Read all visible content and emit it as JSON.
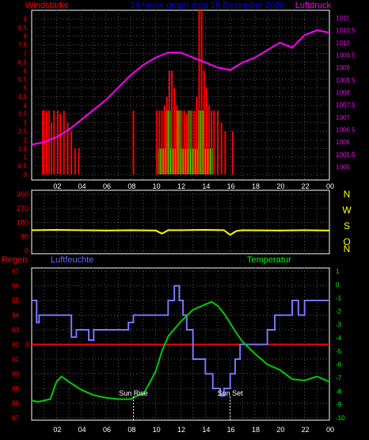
{
  "header": {
    "left_title": "Windstärke",
    "center_title": "24 hours graph data 15 Dezember 2020",
    "right_title": "Luftdruck"
  },
  "compass": [
    "N",
    "W",
    "S",
    "O",
    "N"
  ],
  "lower_header": {
    "left": "Regen",
    "mid": "Luftfeuchte",
    "right": "Temperatur"
  },
  "annotations": {
    "sunrise": "Sun Rise",
    "sunset": "Sun Set"
  },
  "colors": {
    "wind": "#ff0000",
    "gust": "#00ff00",
    "pressure": "#ff00ff",
    "direction": "#ffff00",
    "humidity": "#7777ff",
    "temperature": "#00cc00",
    "rain": "#ff0000",
    "axis_text": "#ff0000"
  },
  "chart_data": [
    {
      "type": "bar",
      "name_printed": "Windstärke / Luftdruck",
      "x_ticks": [
        "02",
        "04",
        "06",
        "08",
        "10",
        "12",
        "14",
        "16",
        "18",
        "20",
        "22",
        "00"
      ],
      "y_left_ticks": [
        "0",
        "0.5",
        "1",
        "1.5",
        "2",
        "2.5",
        "3",
        "3.5",
        "4",
        "4.5",
        "5",
        "5.5",
        "6",
        "6.5",
        "7",
        "7.5",
        "8",
        "8.5",
        "9"
      ],
      "y_right_ticks": [
        "1005",
        "1005.5",
        "1006",
        "1006.5",
        "1007",
        "1007.5",
        "1008",
        "1008.5",
        "1009",
        "1009.5",
        "1010",
        "1010.5",
        "1011"
      ],
      "y_left_range": [
        0,
        9.5
      ],
      "y_right_range": [
        1004.7,
        1011.3
      ],
      "grid": true,
      "wind_bars": [
        {
          "x": 0.9,
          "v": 3.7
        },
        {
          "x": 1.0,
          "v": 3.7
        },
        {
          "x": 1.2,
          "v": 3.7
        },
        {
          "x": 1.4,
          "v": 3.7
        },
        {
          "x": 1.6,
          "v": 3.0
        },
        {
          "x": 1.8,
          "v": 3.7
        },
        {
          "x": 2.1,
          "v": 3.7
        },
        {
          "x": 2.3,
          "v": 3.5
        },
        {
          "x": 2.6,
          "v": 3.7
        },
        {
          "x": 2.9,
          "v": 3.0
        },
        {
          "x": 3.2,
          "v": 2.5
        },
        {
          "x": 3.5,
          "v": 1.5
        },
        {
          "x": 3.8,
          "v": 1.5
        },
        {
          "x": 8.2,
          "v": 3.7
        },
        {
          "x": 10.1,
          "v": 3.7
        },
        {
          "x": 10.3,
          "v": 3.7
        },
        {
          "x": 10.5,
          "v": 3.7
        },
        {
          "x": 10.7,
          "v": 4.0
        },
        {
          "x": 10.9,
          "v": 4.5
        },
        {
          "x": 11.1,
          "v": 6.0
        },
        {
          "x": 11.3,
          "v": 6.0
        },
        {
          "x": 11.5,
          "v": 5.0
        },
        {
          "x": 11.7,
          "v": 4.0
        },
        {
          "x": 11.9,
          "v": 3.7
        },
        {
          "x": 12.1,
          "v": 3.7
        },
        {
          "x": 12.3,
          "v": 3.7
        },
        {
          "x": 12.5,
          "v": 3.5
        },
        {
          "x": 12.7,
          "v": 3.7
        },
        {
          "x": 12.9,
          "v": 3.7
        },
        {
          "x": 13.1,
          "v": 3.7
        },
        {
          "x": 13.3,
          "v": 4.5
        },
        {
          "x": 13.5,
          "v": 9.5
        },
        {
          "x": 13.7,
          "v": 9.5
        },
        {
          "x": 13.9,
          "v": 6.0
        },
        {
          "x": 14.1,
          "v": 5.0
        },
        {
          "x": 14.3,
          "v": 4.0
        },
        {
          "x": 14.5,
          "v": 3.7
        },
        {
          "x": 14.7,
          "v": 3.7
        },
        {
          "x": 15.0,
          "v": 3.7
        },
        {
          "x": 15.3,
          "v": 3.0
        },
        {
          "x": 15.6,
          "v": 2.5
        },
        {
          "x": 16.2,
          "v": 2.5
        }
      ],
      "gust_bars": [
        {
          "from": 10.2,
          "to": 13.4,
          "v": 1.5
        },
        {
          "from": 10.8,
          "to": 11.2,
          "v": 3.7
        },
        {
          "from": 11.6,
          "to": 12.0,
          "v": 3.7
        },
        {
          "from": 12.6,
          "to": 12.8,
          "v": 3.7
        },
        {
          "from": 13.4,
          "to": 13.9,
          "v": 3.7
        },
        {
          "from": 13.9,
          "to": 14.6,
          "v": 1.5
        }
      ],
      "pressure": [
        [
          0.0,
          1005.9
        ],
        [
          1.0,
          1006.0
        ],
        [
          2.0,
          1006.2
        ],
        [
          3.0,
          1006.5
        ],
        [
          4.0,
          1006.9
        ],
        [
          5.0,
          1007.3
        ],
        [
          6.0,
          1007.7
        ],
        [
          7.0,
          1008.2
        ],
        [
          8.0,
          1008.7
        ],
        [
          9.0,
          1009.1
        ],
        [
          10.0,
          1009.4
        ],
        [
          11.0,
          1009.6
        ],
        [
          12.0,
          1009.6
        ],
        [
          13.0,
          1009.4
        ],
        [
          14.0,
          1009.2
        ],
        [
          15.0,
          1009.0
        ],
        [
          16.0,
          1008.9
        ],
        [
          17.0,
          1009.2
        ],
        [
          18.0,
          1009.4
        ],
        [
          19.0,
          1009.7
        ],
        [
          20.0,
          1010.0
        ],
        [
          21.0,
          1009.8
        ],
        [
          22.0,
          1010.3
        ],
        [
          23.0,
          1010.5
        ],
        [
          24.0,
          1010.4
        ]
      ]
    },
    {
      "type": "line",
      "name_printed": "",
      "y_left_ticks": [
        "0",
        "90",
        "180",
        "270",
        "360"
      ],
      "y_range": [
        0,
        360
      ],
      "direction": [
        [
          0.0,
          130
        ],
        [
          2.0,
          132
        ],
        [
          4.0,
          130
        ],
        [
          6.0,
          128
        ],
        [
          8.0,
          130
        ],
        [
          10.0,
          128
        ],
        [
          10.5,
          108
        ],
        [
          11.0,
          130
        ],
        [
          12.0,
          130
        ],
        [
          14.0,
          132
        ],
        [
          15.5,
          130
        ],
        [
          16.0,
          100
        ],
        [
          16.5,
          125
        ],
        [
          17.0,
          130
        ],
        [
          20.0,
          128
        ],
        [
          22.0,
          130
        ],
        [
          24.0,
          128
        ]
      ]
    },
    {
      "type": "line",
      "name_printed": "Regen / Luftfeuchte / Temperatur",
      "y_left_ticks": [
        "87",
        "88",
        "89",
        "90",
        "91",
        "92",
        "93",
        "94",
        "95",
        "96",
        "97"
      ],
      "y_right_ticks": [
        "-10",
        "-9",
        "-8",
        "-7",
        "-6",
        "-5",
        "-4",
        "-3",
        "-2",
        "-1",
        "0",
        "1"
      ],
      "y_left_range": [
        87,
        97
      ],
      "y_right_range": [
        -10,
        1
      ],
      "rain_marker": {
        "label": "0",
        "humidity_level": 92
      },
      "sunrise_hour": 8.2,
      "sunset_hour": 16.0,
      "humidity": [
        [
          0.0,
          95
        ],
        [
          0.4,
          93.5
        ],
        [
          0.6,
          94
        ],
        [
          3.0,
          94
        ],
        [
          3.2,
          92.5
        ],
        [
          3.6,
          93
        ],
        [
          4.2,
          93
        ],
        [
          4.6,
          92.3
        ],
        [
          5.0,
          93
        ],
        [
          7.6,
          93
        ],
        [
          7.8,
          93.5
        ],
        [
          8.2,
          94
        ],
        [
          10.8,
          94
        ],
        [
          11.0,
          95
        ],
        [
          11.5,
          96
        ],
        [
          11.9,
          95
        ],
        [
          12.2,
          94
        ],
        [
          12.5,
          93
        ],
        [
          13.0,
          91
        ],
        [
          14.0,
          90
        ],
        [
          14.6,
          89
        ],
        [
          15.2,
          88.5
        ],
        [
          15.5,
          89
        ],
        [
          16.0,
          90
        ],
        [
          16.4,
          91
        ],
        [
          16.8,
          92
        ],
        [
          19.0,
          93
        ],
        [
          19.6,
          94
        ],
        [
          21.0,
          95
        ],
        [
          21.5,
          94
        ],
        [
          22.0,
          95
        ],
        [
          24.0,
          95
        ]
      ],
      "temperature": [
        [
          0.0,
          -8.7
        ],
        [
          0.5,
          -8.8
        ],
        [
          1.5,
          -8.6
        ],
        [
          2.0,
          -7.3
        ],
        [
          2.4,
          -6.9
        ],
        [
          3.0,
          -7.3
        ],
        [
          3.5,
          -7.6
        ],
        [
          4.0,
          -7.9
        ],
        [
          5.0,
          -8.3
        ],
        [
          6.0,
          -8.5
        ],
        [
          7.0,
          -8.6
        ],
        [
          8.0,
          -8.6
        ],
        [
          8.6,
          -8.3
        ],
        [
          9.0,
          -8.2
        ],
        [
          9.5,
          -7.4
        ],
        [
          10.0,
          -6.5
        ],
        [
          10.5,
          -5.0
        ],
        [
          11.0,
          -3.9
        ],
        [
          12.0,
          -2.8
        ],
        [
          13.0,
          -1.9
        ],
        [
          14.0,
          -1.5
        ],
        [
          14.5,
          -1.3
        ],
        [
          15.0,
          -1.6
        ],
        [
          15.6,
          -2.3
        ],
        [
          16.4,
          -3.5
        ],
        [
          17.0,
          -4.3
        ],
        [
          18.0,
          -5.2
        ],
        [
          19.0,
          -6.0
        ],
        [
          20.0,
          -6.4
        ],
        [
          21.0,
          -7.1
        ],
        [
          22.0,
          -7.2
        ],
        [
          23.0,
          -6.9
        ],
        [
          24.0,
          -7.3
        ]
      ]
    }
  ]
}
